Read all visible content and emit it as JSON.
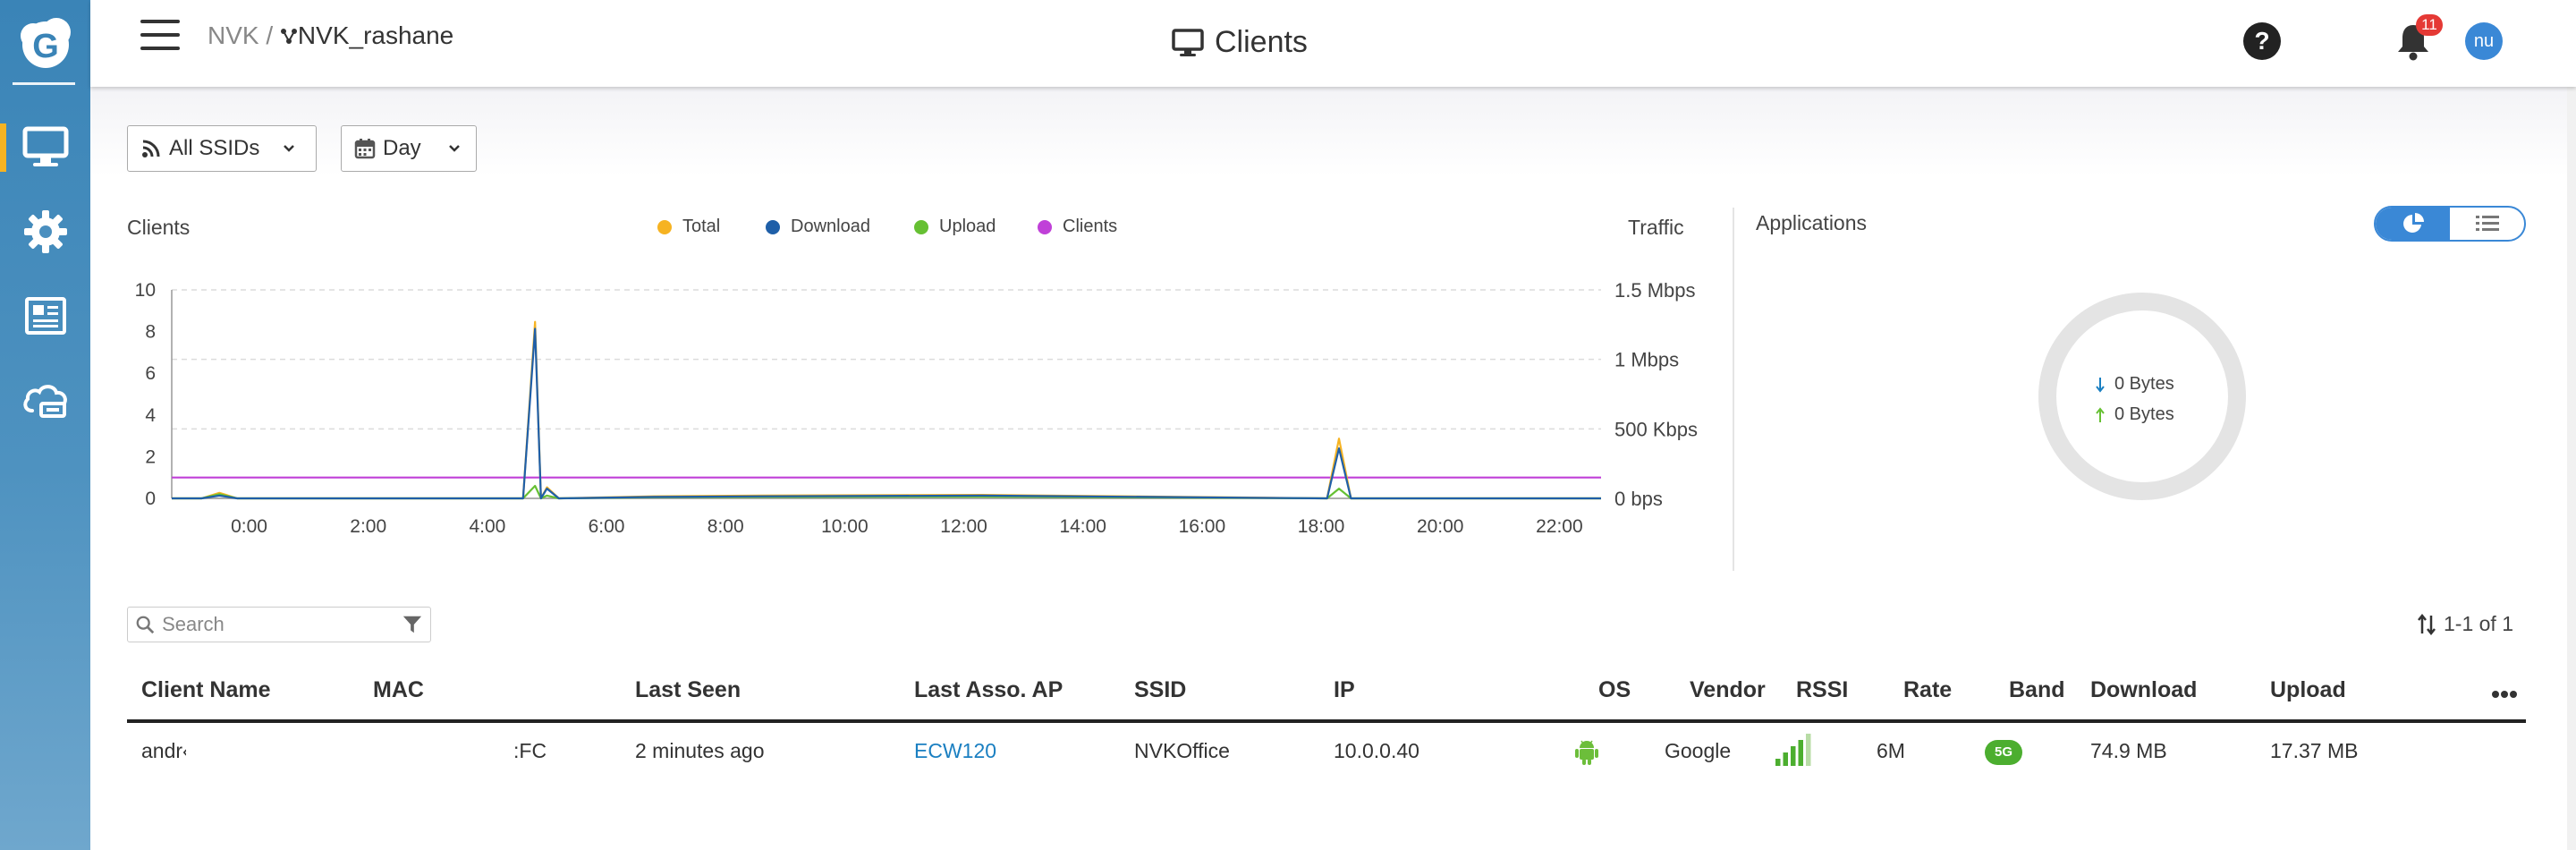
{
  "nav": {
    "breadcrumb_root": "NVK",
    "breadcrumb_sep": "/",
    "site_name": "NVK_rashane",
    "sidebar_items": [
      "monitor-icon",
      "gear-icon",
      "newspaper-icon",
      "cloud-icon"
    ]
  },
  "header": {
    "title": "Clients",
    "notification_count": "11",
    "avatar_initials": "nu"
  },
  "filters": {
    "ssid": "All SSIDs",
    "period": "Day"
  },
  "chart_panel": {
    "left_title": "Clients",
    "right_title": "Traffic"
  },
  "applications": {
    "title": "Applications",
    "download": "0 Bytes",
    "upload": "0 Bytes"
  },
  "chart_data": {
    "type": "line",
    "x_ticks": [
      "0:00",
      "2:00",
      "4:00",
      "6:00",
      "8:00",
      "10:00",
      "12:00",
      "14:00",
      "16:00",
      "18:00",
      "20:00",
      "22:00"
    ],
    "y_left_ticks": [
      "0",
      "2",
      "4",
      "6",
      "8",
      "10"
    ],
    "y_right_ticks": [
      "0 bps",
      "500 Kbps",
      "1 Mbps",
      "1.5 Mbps"
    ],
    "ylim_left": [
      0,
      10
    ],
    "ylim_right_kbps": [
      0,
      1500
    ],
    "xlim_hours": [
      -1.3,
      22.7
    ],
    "legend_position": "top",
    "series": [
      {
        "name": "Total",
        "color": "#f6b322",
        "axis": "right",
        "x": [
          -1.3,
          -0.8,
          -0.5,
          -0.2,
          4.6,
          4.8,
          4.9,
          5.0,
          5.2,
          6.8,
          8.6,
          12.3,
          18.1,
          18.3,
          18.5,
          22.7
        ],
        "y": [
          0,
          0,
          40,
          0,
          0,
          1270,
          0,
          80,
          0,
          15,
          20,
          25,
          0,
          430,
          0,
          0
        ]
      },
      {
        "name": "Download",
        "color": "#1f5fa8",
        "axis": "right",
        "x": [
          -1.3,
          -0.8,
          -0.5,
          -0.2,
          4.6,
          4.8,
          4.9,
          5.0,
          5.2,
          6.8,
          8.6,
          12.3,
          18.1,
          18.3,
          18.5,
          22.7
        ],
        "y": [
          0,
          0,
          20,
          0,
          0,
          1220,
          0,
          70,
          0,
          10,
          15,
          20,
          0,
          360,
          0,
          0
        ]
      },
      {
        "name": "Upload",
        "color": "#66c033",
        "axis": "right",
        "x": [
          -1.3,
          -0.8,
          -0.5,
          -0.2,
          4.6,
          4.8,
          4.9,
          5.0,
          5.2,
          6.8,
          8.6,
          12.3,
          18.1,
          18.3,
          18.5,
          22.7
        ],
        "y": [
          0,
          0,
          30,
          0,
          0,
          90,
          0,
          20,
          0,
          8,
          10,
          12,
          0,
          70,
          0,
          0
        ]
      },
      {
        "name": "Clients",
        "color": "#c040d8",
        "axis": "left",
        "x": [
          -1.3,
          22.7
        ],
        "y": [
          1,
          1
        ]
      }
    ]
  },
  "table": {
    "search_placeholder": "Search",
    "pagination": "1-1 of 1",
    "headers": {
      "client_name": "Client Name",
      "mac": "MAC",
      "last_seen": "Last Seen",
      "last_ap": "Last Asso. AP",
      "ssid": "SSID",
      "ip": "IP",
      "os": "OS",
      "vendor": "Vendor",
      "rssi": "RSSI",
      "rate": "Rate",
      "band": "Band",
      "download": "Download",
      "upload": "Upload"
    },
    "rows": [
      {
        "client_name": "andr‹",
        "mac": ":FC",
        "last_seen": "2 minutes ago",
        "last_ap": "ECW120",
        "ssid": "NVKOffice",
        "ip": "10.0.0.40",
        "os": "android-icon",
        "vendor": "Google",
        "rssi": 4,
        "rate": "6M",
        "band": "5G",
        "download": "74.9 MB",
        "upload": "17.37 MB"
      }
    ]
  },
  "colors": {
    "sidebar": "#3a84b7",
    "accent": "#3a88d6",
    "active_marker": "#f6b322",
    "badge": "#e53935",
    "band_badge": "#4cae2f",
    "link": "#1a7fc1"
  }
}
